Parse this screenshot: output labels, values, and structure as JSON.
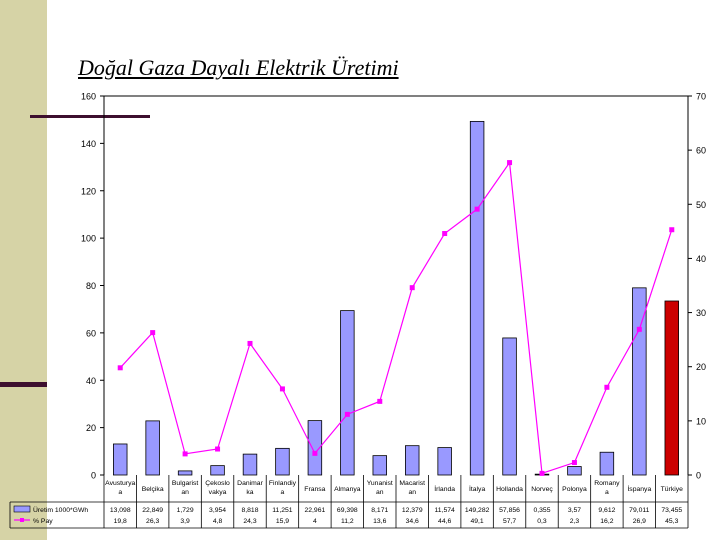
{
  "slide": {
    "title": "Doğal Gaza Dayalı Elektrik Üretimi"
  },
  "chart_data": {
    "type": "bar",
    "title": "",
    "xlabel": "",
    "ylabel": "",
    "ylim": [
      0,
      160
    ],
    "y2lim": [
      0,
      70
    ],
    "grid": false,
    "y_ticks": [
      "0",
      "20",
      "40",
      "60",
      "80",
      "100",
      "120",
      "140",
      "160"
    ],
    "y2_ticks": [
      "0",
      "10",
      "20",
      "30",
      "40",
      "50",
      "60",
      "70"
    ],
    "categories": [
      [
        "Avusturya",
        "a"
      ],
      [
        "Belçika"
      ],
      [
        "Bulgarist",
        "an"
      ],
      [
        "Çekoslo",
        "vakya"
      ],
      [
        "Danimar",
        "ka"
      ],
      [
        "Finlandiy",
        "a"
      ],
      [
        "Fransa"
      ],
      [
        "Almanya"
      ],
      [
        "Yunanist",
        "an"
      ],
      [
        "Macarist",
        "an"
      ],
      [
        "İrlanda"
      ],
      [
        "İtalya"
      ],
      [
        "Hollanda"
      ],
      [
        "Norveç"
      ],
      [
        "Polonya"
      ],
      [
        "Romany",
        "a"
      ],
      [
        "İspanya"
      ],
      [
        "Türkiye"
      ]
    ],
    "series": [
      {
        "name": "Üretim 1000*GWh",
        "kind": "bar",
        "axis": "left",
        "color": "#9999ff",
        "highlight_color": "#cc0000",
        "highlight_index": 17,
        "values": [
          13.098,
          22.849,
          1.729,
          3.954,
          8.818,
          11.251,
          22.961,
          69.398,
          8.171,
          12.379,
          11.574,
          149.282,
          57.856,
          0.355,
          3.57,
          9.612,
          79.011,
          73.455
        ],
        "labels": [
          "13,098",
          "22,849",
          "1,729",
          "3,954",
          "8,818",
          "11,251",
          "22,961",
          "69,398",
          "8,171",
          "12,379",
          "11,574",
          "149,282",
          "57,856",
          "0,355",
          "3,57",
          "9,612",
          "79,011",
          "73,455"
        ]
      },
      {
        "name": "% Pay",
        "kind": "line",
        "axis": "right",
        "color": "#ff00ff",
        "values": [
          19.8,
          26.3,
          3.9,
          4.8,
          24.3,
          15.9,
          4,
          11.2,
          13.6,
          34.6,
          44.6,
          49.1,
          57.7,
          0.3,
          2.3,
          16.2,
          26.9,
          45.3
        ],
        "labels": [
          "19,8",
          "26,3",
          "3,9",
          "4,8",
          "24,3",
          "15,9",
          "4",
          "11,2",
          "13,6",
          "34,6",
          "44,6",
          "49,1",
          "57,7",
          "0,3",
          "2,3",
          "16,2",
          "26,9",
          "45,3"
        ]
      }
    ],
    "colors": {
      "axis": "#000000",
      "table_border": "#000000"
    }
  }
}
